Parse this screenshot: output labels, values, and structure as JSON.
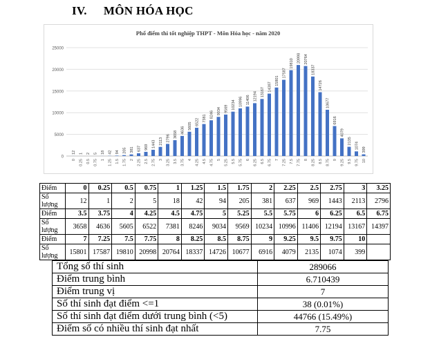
{
  "heading": {
    "number": "IV.",
    "title": "MÔN HÓA HỌC"
  },
  "chart_data": {
    "type": "bar",
    "title": "Phổ điểm thi tốt nghiệp THPT - Môn Hóa học - năm 2020",
    "categories": [
      "0",
      "0.25",
      "0.5",
      "0.75",
      "1",
      "1.25",
      "1.5",
      "1.75",
      "2",
      "2.25",
      "2.5",
      "2.75",
      "3",
      "3.25",
      "3.5",
      "3.75",
      "4",
      "4.25",
      "4.5",
      "4.75",
      "5",
      "5.25",
      "5.5",
      "5.75",
      "6",
      "6.25",
      "6.5",
      "6.75",
      "7",
      "7.25",
      "7.5",
      "7.75",
      "8",
      "8.25",
      "8.5",
      "8.75",
      "9",
      "9.25",
      "9.5",
      "9.75",
      "10"
    ],
    "values": [
      12,
      1,
      2,
      5,
      18,
      42,
      94,
      205,
      381,
      637,
      969,
      1443,
      2113,
      2796,
      3658,
      4636,
      5605,
      6522,
      7381,
      8246,
      9034,
      9569,
      10234,
      10996,
      11406,
      12194,
      13167,
      14397,
      15801,
      17587,
      19810,
      20998,
      20764,
      18337,
      14726,
      10677,
      6916,
      4079,
      2135,
      1074,
      399
    ],
    "yticks": [
      "0",
      "5000",
      "10000",
      "15000",
      "20000",
      "25000"
    ],
    "ylim": [
      0,
      25000
    ],
    "grid": true,
    "bar_color": "#4472c4"
  },
  "dist_table": {
    "score_label": "Điểm",
    "count_label": "Số lượng",
    "rows": [
      {
        "scores": [
          "0",
          "0.25",
          "0.5",
          "0.75",
          "1",
          "1.25",
          "1.5",
          "1.75",
          "2",
          "2.25",
          "2.5",
          "2.75",
          "3",
          "3.25"
        ],
        "counts": [
          "12",
          "1",
          "2",
          "5",
          "18",
          "42",
          "94",
          "205",
          "381",
          "637",
          "969",
          "1443",
          "2113",
          "2796"
        ]
      },
      {
        "scores": [
          "3.5",
          "3.75",
          "4",
          "4.25",
          "4.5",
          "4.75",
          "5",
          "5.25",
          "5.5",
          "5.75",
          "6",
          "6.25",
          "6.5",
          "6.75"
        ],
        "counts": [
          "3658",
          "4636",
          "5605",
          "6522",
          "7381",
          "8246",
          "9034",
          "9569",
          "10234",
          "10996",
          "11406",
          "12194",
          "13167",
          "14397"
        ]
      },
      {
        "scores": [
          "7",
          "7.25",
          "7.5",
          "7.75",
          "8",
          "8.25",
          "8.5",
          "8.75",
          "9",
          "9.25",
          "9.5",
          "9.75",
          "10",
          ""
        ],
        "counts": [
          "15801",
          "17587",
          "19810",
          "20998",
          "20764",
          "18337",
          "14726",
          "10677",
          "6916",
          "4079",
          "2135",
          "1074",
          "399",
          ""
        ]
      }
    ]
  },
  "stats": [
    {
      "label": "Tổng số thí sinh",
      "value": "289066"
    },
    {
      "label": "Điểm trung bình",
      "value": "6.710439"
    },
    {
      "label": "Điểm trung vị",
      "value": "7"
    },
    {
      "label": "Số thí sinh đạt điểm <=1",
      "value": "38 (0.01%)"
    },
    {
      "label": "Số thí sinh đạt điểm dưới trung bình (<5)",
      "value": "44766 (15.49%)"
    },
    {
      "label": "Điểm số có nhiều thí sinh đạt nhất",
      "value": "7.75"
    }
  ]
}
